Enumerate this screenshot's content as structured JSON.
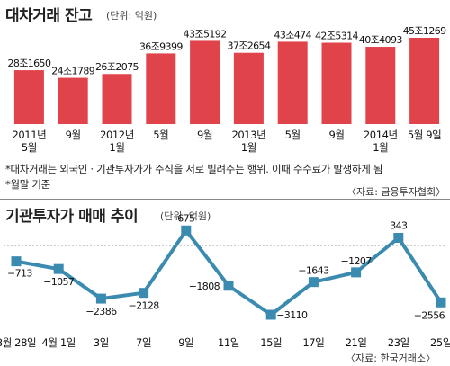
{
  "bar_section": {
    "title": "대차거래 잔고",
    "unit": "(단위: 억원)",
    "notes": [
      "*대차거래는 외국인 · 기관투자가가 주식을 서로 빌려주는 행위. 이때 수수료가 발생하게 됨",
      "*월말 기준"
    ],
    "source": "〈자료: 금융투자협회〉"
  },
  "line_section": {
    "title": "기관투자가 매매 추이",
    "unit": "(단위: 억원)",
    "source": "〈자료: 한국거래소〉"
  },
  "colors": {
    "bar": "#e0434a",
    "line": "#3b8ab0",
    "point": "#3b8ab0"
  },
  "chart_data": [
    {
      "type": "bar",
      "title": "대차거래 잔고",
      "unit": "억원",
      "categories": [
        [
          "2011년",
          "5월"
        ],
        [
          "9월"
        ],
        [
          "2012년",
          "1월"
        ],
        [
          "5월"
        ],
        [
          "9월"
        ],
        [
          "2013년",
          "1월"
        ],
        [
          "5월"
        ],
        [
          "9월"
        ],
        [
          "2014년",
          "1월"
        ],
        [
          "5월 9일"
        ]
      ],
      "labels": [
        "28조1650",
        "24조1789",
        "26조2075",
        "36조9399",
        "43조5192",
        "37조2654",
        "43조474",
        "42조5314",
        "40조4093",
        "45조1269"
      ],
      "values": [
        281650,
        241789,
        262075,
        369399,
        435192,
        372654,
        430474,
        425314,
        404093,
        451269
      ]
    },
    {
      "type": "line",
      "title": "기관투자가 매매 추이",
      "unit": "억원",
      "categories": [
        "3월 28일",
        "4월 1일",
        "3일",
        "7일",
        "9일",
        "11일",
        "15일",
        "17일",
        "21일",
        "23일",
        "25일"
      ],
      "labels": [
        "−713",
        "−1057",
        "−2386",
        "−2128",
        "675",
        "−1808",
        "−3110",
        "−1643",
        "−1207",
        "343",
        "−2556"
      ],
      "values": [
        -713,
        -1057,
        -2386,
        -2128,
        675,
        -1808,
        -3110,
        -1643,
        -1207,
        343,
        -2556
      ],
      "reference_line": 0
    }
  ]
}
